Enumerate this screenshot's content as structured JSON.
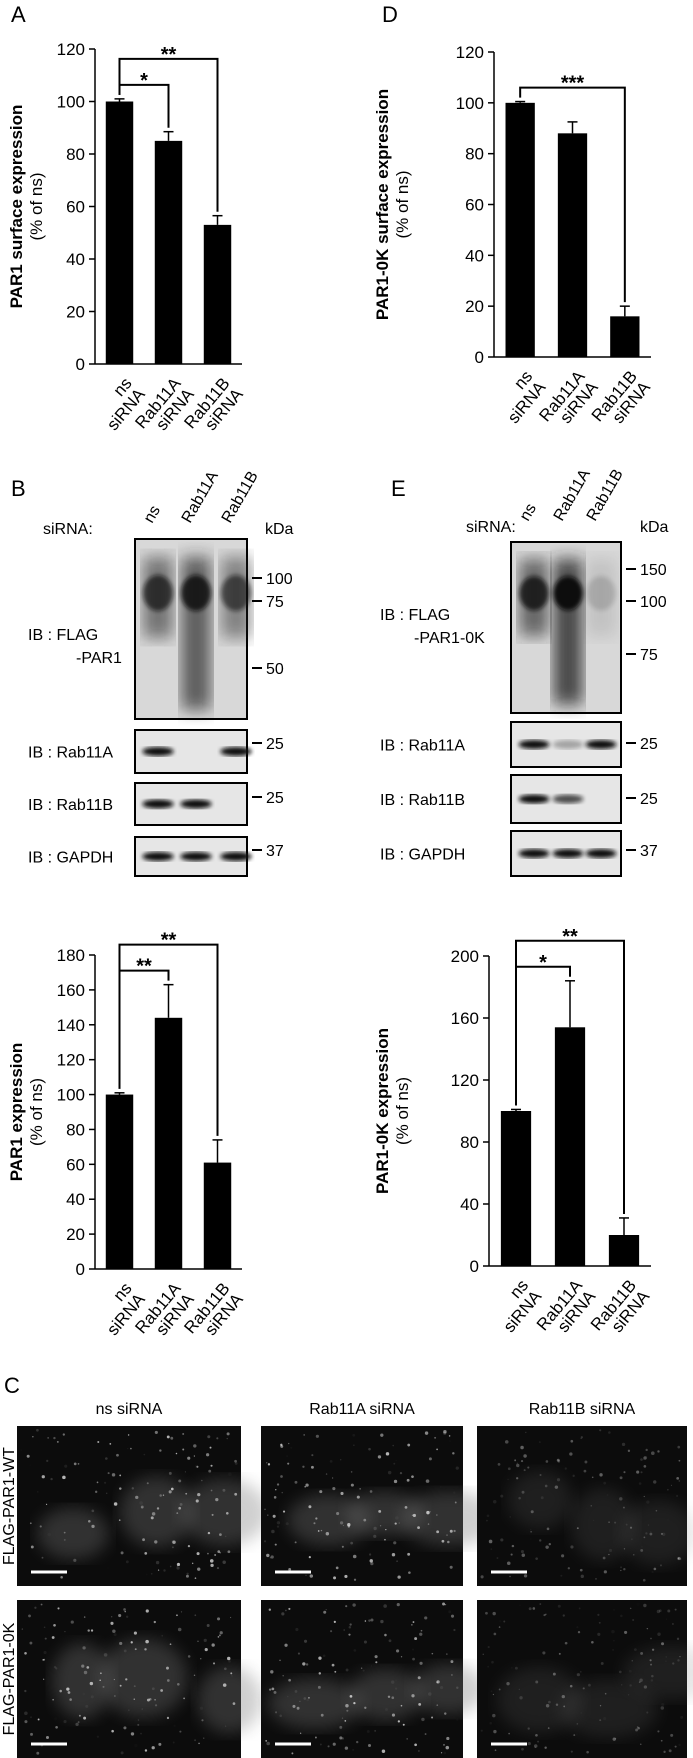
{
  "chart_data": [
    {
      "type": "bar",
      "panel": "A",
      "ylabel": "PAR1 surface expression",
      "ylabel_unit": "(% of ns)",
      "categories": [
        "ns siRNA",
        "Rab11A siRNA",
        "Rab11B siRNA"
      ],
      "values": [
        100,
        85,
        53
      ],
      "errors": [
        1,
        3.5,
        3.5
      ],
      "color": "#000000",
      "ylim": [
        0,
        120
      ],
      "yticks": [
        0,
        20,
        40,
        60,
        80,
        100,
        120
      ],
      "significance": [
        {
          "categories": [
            "ns siRNA",
            "Rab11A siRNA"
          ],
          "label": "*"
        },
        {
          "categories": [
            "ns siRNA",
            "Rab11B siRNA"
          ],
          "label": "**"
        }
      ]
    },
    {
      "type": "bar",
      "panel": "D",
      "ylabel": "PAR1-0K surface expression",
      "ylabel_unit": "(% of ns)",
      "categories": [
        "ns siRNA",
        "Rab11A siRNA",
        "Rab11B siRNA"
      ],
      "values": [
        100,
        88,
        16
      ],
      "errors": [
        0.5,
        4.5,
        4
      ],
      "color": "#000000",
      "ylim": [
        0,
        120
      ],
      "yticks": [
        0,
        20,
        40,
        60,
        80,
        100,
        120
      ],
      "significance": [
        {
          "categories": [
            "ns siRNA",
            "Rab11B siRNA"
          ],
          "label": "***"
        }
      ]
    },
    {
      "type": "bar",
      "ylabel": "PAR1 expression",
      "ylabel_unit": "(% of ns)",
      "categories": [
        "ns siRNA",
        "Rab11A siRNA",
        "Rab11B siRNA"
      ],
      "values": [
        100,
        144,
        61
      ],
      "errors": [
        1,
        19,
        13
      ],
      "color": "#000000",
      "ylim": [
        0,
        180
      ],
      "yticks": [
        0,
        20,
        40,
        60,
        80,
        100,
        120,
        140,
        160,
        180
      ],
      "significance": [
        {
          "categories": [
            "ns siRNA",
            "Rab11A siRNA"
          ],
          "label": "**"
        },
        {
          "categories": [
            "ns siRNA",
            "Rab11B siRNA"
          ],
          "label": "**"
        }
      ]
    },
    {
      "type": "bar",
      "ylabel": "PAR1-0K expression",
      "ylabel_unit": "(% of ns)",
      "categories": [
        "ns siRNA",
        "Rab11A siRNA",
        "Rab11B siRNA"
      ],
      "values": [
        100,
        154,
        20
      ],
      "errors": [
        1,
        30,
        11
      ],
      "color": "#000000",
      "ylim": [
        0,
        200
      ],
      "yticks": [
        0,
        40,
        80,
        120,
        160,
        200
      ],
      "significance": [
        {
          "categories": [
            "ns siRNA",
            "Rab11A siRNA"
          ],
          "label": "*"
        },
        {
          "categories": [
            "ns siRNA",
            "Rab11B siRNA"
          ],
          "label": "**"
        }
      ]
    }
  ],
  "blots": [
    {
      "panel": "B",
      "header": "siRNA:",
      "lanes": [
        "ns",
        "Rab11A",
        "Rab11B"
      ],
      "unit": "kDa",
      "rows": [
        {
          "label": [
            "IB : FLAG",
            "-PAR1"
          ],
          "markers": [
            100,
            75,
            50
          ]
        },
        {
          "label": [
            "IB : Rab11A"
          ],
          "markers": [
            25
          ]
        },
        {
          "label": [
            "IB : Rab11B"
          ],
          "markers": [
            25
          ]
        },
        {
          "label": [
            "IB : GAPDH"
          ],
          "markers": [
            37
          ]
        }
      ]
    },
    {
      "panel": "E",
      "header": "siRNA:",
      "lanes": [
        "ns",
        "Rab11A",
        "Rab11B"
      ],
      "unit": "kDa",
      "rows": [
        {
          "label": [
            "IB : FLAG",
            "-PAR1-0K"
          ],
          "markers": [
            150,
            100,
            75
          ]
        },
        {
          "label": [
            "IB : Rab11A"
          ],
          "markers": [
            25
          ]
        },
        {
          "label": [
            "IB : Rab11B"
          ],
          "markers": [
            25
          ]
        },
        {
          "label": [
            "IB : GAPDH"
          ],
          "markers": [
            37
          ]
        }
      ]
    }
  ],
  "micrographs": {
    "panel": "C",
    "columns": [
      "ns siRNA",
      "Rab11A siRNA",
      "Rab11B siRNA"
    ],
    "rows": [
      "FLAG-PAR1-WT",
      "FLAG-PAR1-0K"
    ]
  }
}
